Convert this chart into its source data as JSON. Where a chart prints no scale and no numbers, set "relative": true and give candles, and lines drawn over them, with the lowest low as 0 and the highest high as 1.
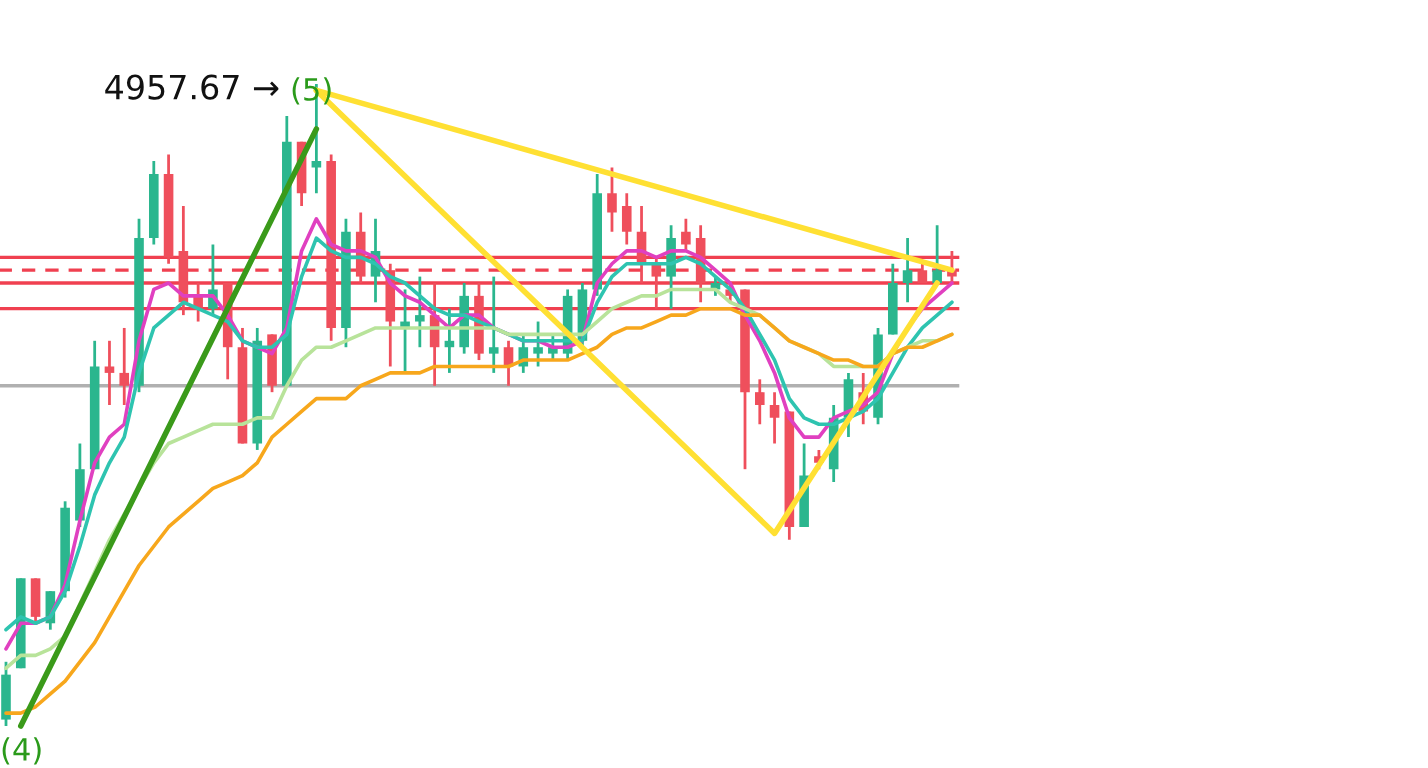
{
  "chart_data": {
    "type": "candlestick",
    "relative": true,
    "categories": [
      null,
      null,
      null,
      null,
      null,
      null,
      null,
      null,
      null,
      null,
      null,
      null,
      null,
      null,
      null,
      null,
      null,
      null,
      null,
      null,
      null,
      null,
      null,
      null,
      null,
      null,
      null,
      null,
      null,
      null,
      null,
      null,
      null,
      null,
      null,
      null,
      null,
      null,
      null,
      null,
      null,
      null,
      null,
      null,
      null,
      null,
      null,
      null,
      null,
      null,
      null,
      null,
      null,
      null,
      null,
      null,
      null,
      null,
      null,
      null,
      null,
      null,
      null,
      null,
      null
    ],
    "ohlc": [
      [
        0.01,
        0.1,
        0,
        0.08
      ],
      [
        0.09,
        0.23,
        0.09,
        0.23
      ],
      [
        0.23,
        0.23,
        0.16,
        0.17
      ],
      [
        0.16,
        0.21,
        0.15,
        0.21
      ],
      [
        0.21,
        0.35,
        0.2,
        0.34
      ],
      [
        0.32,
        0.44,
        0.31,
        0.4
      ],
      [
        0.4,
        0.6,
        0.4,
        0.56
      ],
      [
        0.56,
        0.6,
        0.5,
        0.55
      ],
      [
        0.55,
        0.62,
        0.5,
        0.53
      ],
      [
        0.53,
        0.79,
        0.52,
        0.76
      ],
      [
        0.76,
        0.88,
        0.75,
        0.86
      ],
      [
        0.86,
        0.89,
        0.72,
        0.73
      ],
      [
        0.74,
        0.81,
        0.64,
        0.66
      ],
      [
        0.67,
        0.69,
        0.63,
        0.65
      ],
      [
        0.65,
        0.75,
        0.64,
        0.68
      ],
      [
        0.69,
        0.69,
        0.54,
        0.59
      ],
      [
        0.59,
        0.62,
        0.44,
        0.44
      ],
      [
        0.44,
        0.62,
        0.43,
        0.6
      ],
      [
        0.61,
        0.61,
        0.52,
        0.53
      ],
      [
        0.53,
        0.95,
        0.53,
        0.91
      ],
      [
        0.91,
        0.91,
        0.81,
        0.83
      ],
      [
        0.87,
        1,
        0.83,
        0.88
      ],
      [
        0.88,
        0.89,
        0.6,
        0.62
      ],
      [
        0.62,
        0.79,
        0.59,
        0.77
      ],
      [
        0.77,
        0.8,
        0.69,
        0.7
      ],
      [
        0.7,
        0.79,
        0.66,
        0.74
      ],
      [
        0.71,
        0.72,
        0.56,
        0.63
      ],
      [
        0.62,
        0.68,
        0.55,
        0.63
      ],
      [
        0.63,
        0.7,
        0.59,
        0.64
      ],
      [
        0.64,
        0.69,
        0.53,
        0.59
      ],
      [
        0.59,
        0.65,
        0.55,
        0.6
      ],
      [
        0.59,
        0.69,
        0.58,
        0.67
      ],
      [
        0.67,
        0.69,
        0.57,
        0.58
      ],
      [
        0.58,
        0.7,
        0.55,
        0.59
      ],
      [
        0.59,
        0.6,
        0.53,
        0.56
      ],
      [
        0.56,
        0.61,
        0.55,
        0.59
      ],
      [
        0.58,
        0.63,
        0.56,
        0.59
      ],
      [
        0.58,
        0.61,
        0.57,
        0.59
      ],
      [
        0.58,
        0.68,
        0.57,
        0.67
      ],
      [
        0.6,
        0.69,
        0.59,
        0.68
      ],
      [
        0.68,
        0.86,
        0.67,
        0.83
      ],
      [
        0.83,
        0.87,
        0.77,
        0.8
      ],
      [
        0.81,
        0.83,
        0.75,
        0.77
      ],
      [
        0.77,
        0.81,
        0.69,
        0.72
      ],
      [
        0.72,
        0.73,
        0.65,
        0.7
      ],
      [
        0.7,
        0.78,
        0.65,
        0.76
      ],
      [
        0.77,
        0.79,
        0.74,
        0.75
      ],
      [
        0.76,
        0.78,
        0.66,
        0.69
      ],
      [
        0.68,
        0.7,
        0.67,
        0.69
      ],
      [
        0.68,
        0.69,
        0.66,
        0.67
      ],
      [
        0.68,
        0.68,
        0.4,
        0.52
      ],
      [
        0.52,
        0.54,
        0.47,
        0.5
      ],
      [
        0.5,
        0.52,
        0.44,
        0.48
      ],
      [
        0.49,
        0.49,
        0.29,
        0.31
      ],
      [
        0.31,
        0.44,
        0.31,
        0.39
      ],
      [
        0.42,
        0.43,
        0.4,
        0.41
      ],
      [
        0.4,
        0.5,
        0.38,
        0.48
      ],
      [
        0.48,
        0.55,
        0.45,
        0.54
      ],
      [
        0.52,
        0.55,
        0.47,
        0.49
      ],
      [
        0.48,
        0.62,
        0.47,
        0.61
      ],
      [
        0.61,
        0.72,
        0.61,
        0.69
      ],
      [
        0.69,
        0.76,
        0.66,
        0.71
      ],
      [
        0.71,
        0.72,
        0.69,
        0.69
      ],
      [
        0.69,
        0.78,
        0.69,
        0.71
      ],
      [
        0.71,
        0.74,
        0.69,
        0.7
      ]
    ],
    "series": [
      {
        "type": "line",
        "color": "#e040c0",
        "values": [
          0.12,
          0.16,
          0.16,
          0.17,
          0.22,
          0.32,
          0.41,
          0.45,
          0.47,
          0.6,
          0.68,
          0.69,
          0.67,
          0.67,
          0.67,
          0.64,
          0.6,
          0.59,
          0.58,
          0.62,
          0.74,
          0.79,
          0.75,
          0.74,
          0.74,
          0.73,
          0.69,
          0.67,
          0.66,
          0.64,
          0.62,
          0.64,
          0.64,
          0.62,
          0.61,
          0.6,
          0.6,
          0.59,
          0.59,
          0.6,
          0.69,
          0.72,
          0.74,
          0.74,
          0.73,
          0.74,
          0.74,
          0.73,
          0.71,
          0.69,
          0.64,
          0.6,
          0.55,
          0.48,
          0.45,
          0.45,
          0.48,
          0.49,
          0.5,
          0.52,
          0.58,
          0.62,
          0.65,
          0.67,
          0.69
        ]
      },
      {
        "type": "line",
        "color": "#2ec4b0",
        "values": [
          0.15,
          0.17,
          0.16,
          0.17,
          0.21,
          0.28,
          0.36,
          0.41,
          0.45,
          0.55,
          0.62,
          0.64,
          0.66,
          0.65,
          0.64,
          0.63,
          0.6,
          0.59,
          0.59,
          0.61,
          0.7,
          0.76,
          0.74,
          0.73,
          0.73,
          0.72,
          0.7,
          0.69,
          0.67,
          0.65,
          0.64,
          0.64,
          0.63,
          0.62,
          0.61,
          0.6,
          0.6,
          0.6,
          0.6,
          0.6,
          0.66,
          0.7,
          0.72,
          0.72,
          0.72,
          0.72,
          0.73,
          0.72,
          0.7,
          0.68,
          0.65,
          0.61,
          0.57,
          0.51,
          0.48,
          0.47,
          0.47,
          0.48,
          0.49,
          0.51,
          0.55,
          0.59,
          0.62,
          0.64,
          0.66
        ]
      },
      {
        "type": "line",
        "color": "#b8e39a",
        "values": [
          0.09,
          0.11,
          0.11,
          0.12,
          0.14,
          0.19,
          0.24,
          0.29,
          0.33,
          0.37,
          0.41,
          0.44,
          0.45,
          0.46,
          0.47,
          0.47,
          0.47,
          0.48,
          0.48,
          0.53,
          0.57,
          0.59,
          0.59,
          0.6,
          0.61,
          0.62,
          0.62,
          0.62,
          0.62,
          0.62,
          0.62,
          0.62,
          0.62,
          0.62,
          0.61,
          0.61,
          0.61,
          0.61,
          0.61,
          0.61,
          0.63,
          0.65,
          0.66,
          0.67,
          0.67,
          0.68,
          0.68,
          0.68,
          0.68,
          0.66,
          0.65,
          0.64,
          0.62,
          0.6,
          0.59,
          0.58,
          0.56,
          0.56,
          0.56,
          0.56,
          0.58,
          0.59,
          0.6,
          0.6,
          0.61
        ]
      },
      {
        "type": "line",
        "color": "#f7a71c",
        "values": [
          0.02,
          0.02,
          0.03,
          0.05,
          0.07,
          0.1,
          0.13,
          0.17,
          0.21,
          0.25,
          0.28,
          0.31,
          0.33,
          0.35,
          0.37,
          0.38,
          0.39,
          0.41,
          0.45,
          0.47,
          0.49,
          0.51,
          0.51,
          0.51,
          0.53,
          0.54,
          0.55,
          0.55,
          0.55,
          0.56,
          0.56,
          0.56,
          0.56,
          0.56,
          0.56,
          0.57,
          0.57,
          0.57,
          0.57,
          0.58,
          0.59,
          0.61,
          0.62,
          0.62,
          0.63,
          0.64,
          0.64,
          0.65,
          0.65,
          0.65,
          0.64,
          0.64,
          0.62,
          0.6,
          0.59,
          0.58,
          0.57,
          0.57,
          0.56,
          0.56,
          0.58,
          0.59,
          0.59,
          0.6,
          0.61
        ]
      },
      {
        "type": "line",
        "color": "#3a9a1a",
        "values": [
          null,
          0,
          null,
          null,
          null,
          null,
          null,
          null,
          null,
          null,
          null,
          null,
          null,
          null,
          null,
          null,
          null,
          null,
          null,
          null,
          null,
          0.93,
          null,
          null,
          null,
          null,
          null,
          null,
          null,
          null,
          null,
          null,
          null,
          null,
          null,
          null,
          null,
          null,
          null,
          null,
          null,
          null,
          null,
          null,
          null,
          null,
          null,
          null,
          null,
          null,
          null,
          null,
          null,
          null,
          null,
          null,
          null,
          null,
          null,
          null,
          null,
          null,
          null,
          null,
          null
        ]
      },
      {
        "type": "line",
        "color": "#ffe033",
        "values": [
          null,
          null,
          null,
          null,
          null,
          null,
          null,
          null,
          null,
          null,
          null,
          null,
          null,
          null,
          null,
          null,
          null,
          null,
          null,
          null,
          null,
          0.99,
          null,
          null,
          null,
          null,
          null,
          null,
          null,
          null,
          null,
          null,
          null,
          null,
          null,
          null,
          null,
          null,
          null,
          null,
          null,
          null,
          null,
          null,
          null,
          null,
          null,
          null,
          null,
          null,
          null,
          null,
          0.3,
          null,
          null,
          null,
          null,
          null,
          null,
          null,
          null,
          null,
          null,
          0.69,
          null
        ]
      },
      {
        "type": "line",
        "color": "#ffe033",
        "values": [
          null,
          null,
          null,
          null,
          null,
          null,
          null,
          null,
          null,
          null,
          null,
          null,
          null,
          null,
          null,
          null,
          null,
          null,
          null,
          null,
          null,
          0.99,
          null,
          null,
          null,
          null,
          null,
          null,
          null,
          null,
          null,
          null,
          null,
          null,
          null,
          null,
          null,
          null,
          null,
          null,
          null,
          null,
          null,
          null,
          null,
          null,
          null,
          null,
          null,
          null,
          null,
          null,
          null,
          null,
          null,
          null,
          null,
          null,
          null,
          null,
          null,
          null,
          null,
          null,
          0.71
        ]
      }
    ],
    "ref_lines": [
      {
        "axis": "y",
        "value": 0.73,
        "label": null,
        "color": "#f04050",
        "line_style": "solid"
      },
      {
        "axis": "y",
        "value": 0.71,
        "label": null,
        "color": "#f04050",
        "line_style": "dashed"
      },
      {
        "axis": "y",
        "value": 0.69,
        "label": null,
        "color": "#f04050",
        "line_style": "solid"
      },
      {
        "axis": "y",
        "value": 0.65,
        "label": null,
        "color": "#f04050",
        "line_style": "solid"
      },
      {
        "axis": "y",
        "value": 0.53,
        "label": null,
        "color": "#b0b0b0",
        "line_style": "solid"
      }
    ],
    "annotations": [
      "4957.67 →",
      "(5)",
      "(4)"
    ]
  }
}
